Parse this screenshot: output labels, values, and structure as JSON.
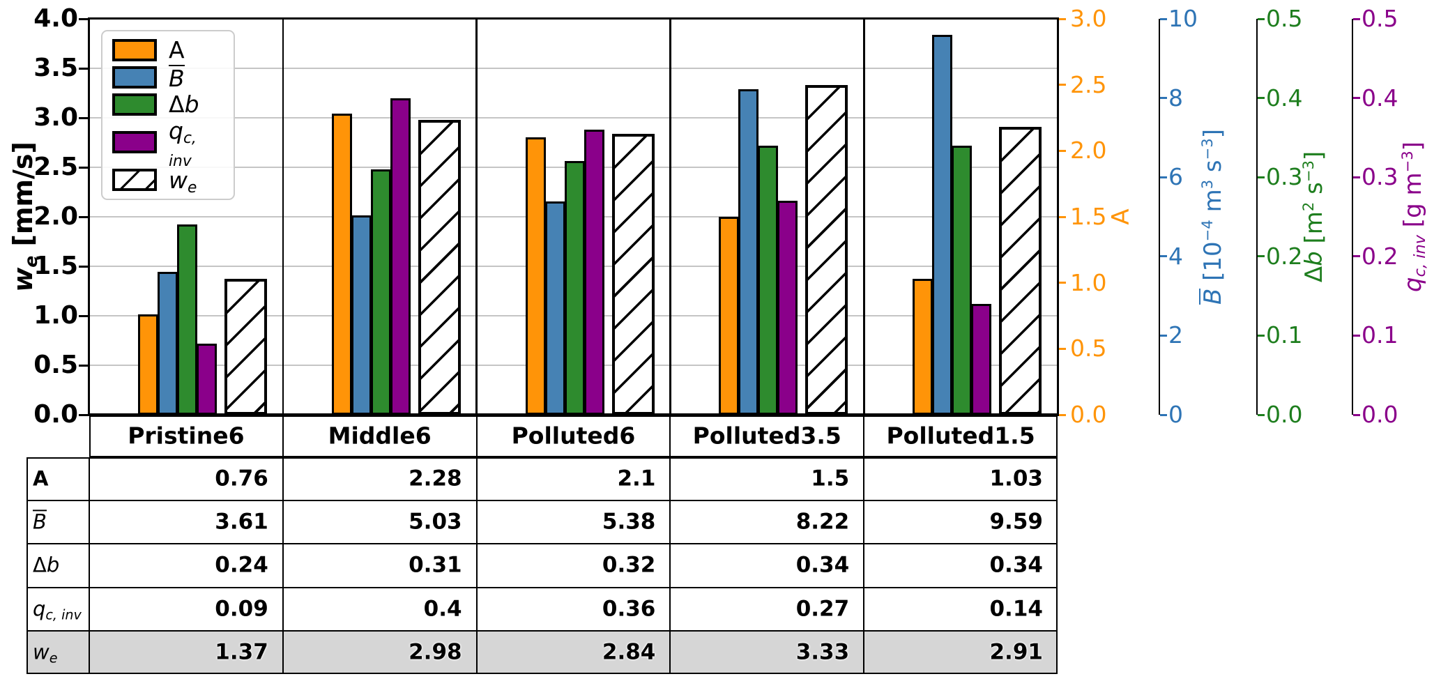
{
  "colors": {
    "orange": "#FF9408",
    "blue_bar": "#4682B4",
    "blue_text": "#2E74B5",
    "green_bar": "#2E8B2E",
    "green_text": "#1E7E1E",
    "purple": "#8A008A",
    "grid": "#C5C5C5",
    "table_shaded_row": "#D6D6D6",
    "legend_border": "#CCCCCC"
  },
  "chart_data": {
    "type": "bar",
    "title": "",
    "categories": [
      "Pristine6",
      "Middle6",
      "Polluted6",
      "Polluted3.5",
      "Polluted1.5"
    ],
    "series": [
      {
        "name": "A",
        "values": [
          0.76,
          2.28,
          2.1,
          1.5,
          1.03
        ],
        "axis_label": "A",
        "axis_range": [
          0,
          3
        ],
        "color": "#FF9408",
        "hatched": false
      },
      {
        "name": "B̄",
        "values": [
          3.61,
          5.03,
          5.38,
          8.22,
          9.59
        ],
        "axis_label": "B̄ [10⁻⁴ m³ s⁻³]",
        "axis_range": [
          0,
          10
        ],
        "color": "#4682B4",
        "hatched": false
      },
      {
        "name": "Δb",
        "values": [
          0.24,
          0.31,
          0.32,
          0.34,
          0.34
        ],
        "axis_label": "Δb [m² s⁻³]",
        "axis_range": [
          0,
          0.5
        ],
        "color": "#2E8B2E",
        "hatched": false
      },
      {
        "name": "q_c,inv",
        "values": [
          0.09,
          0.4,
          0.36,
          0.27,
          0.14
        ],
        "axis_label": "q_c,inv [g m⁻³]",
        "axis_range": [
          0,
          0.5
        ],
        "color": "#8A008A",
        "hatched": false
      },
      {
        "name": "w_e",
        "values": [
          1.37,
          2.98,
          2.84,
          3.33,
          2.91
        ],
        "axis_label": "w_e [mm/s]",
        "axis_range": [
          0,
          4
        ],
        "color": "#FFFFFF",
        "hatched": true
      }
    ],
    "ylabel": "w_e [mm/s]",
    "ylim": [
      0,
      4
    ],
    "grid": true,
    "gridline_values": [
      0.5,
      1.0,
      1.5,
      2.0,
      2.5,
      3.0,
      3.5
    ],
    "legend_position": "upper left"
  },
  "left_axis": {
    "label_tokens": [
      {
        "t": "w",
        "i": true
      },
      {
        "t": "e",
        "sub": true,
        "i": true
      },
      {
        "t": " [mm/s]"
      }
    ],
    "ticks": [
      "0.0",
      "0.5",
      "1.0",
      "1.5",
      "2.0",
      "2.5",
      "3.0",
      "3.5",
      "4.0"
    ],
    "max": 4
  },
  "right_axes": [
    {
      "id": "A",
      "text_color": "#FF9408",
      "max": 3,
      "ticks": [
        "0.0",
        "0.5",
        "1.0",
        "1.5",
        "2.0",
        "2.5",
        "3.0"
      ],
      "label_tokens": [
        {
          "t": "A"
        }
      ]
    },
    {
      "id": "B",
      "text_color": "#2E74B5",
      "max": 10,
      "ticks": [
        "0",
        "2",
        "4",
        "6",
        "8",
        "10"
      ],
      "label_tokens": [
        {
          "t": "B",
          "i": true,
          "ov": true
        },
        {
          "t": " [10"
        },
        {
          "t": "−4",
          "sup": true
        },
        {
          "t": " m"
        },
        {
          "t": "3",
          "sup": true
        },
        {
          "t": " s"
        },
        {
          "t": "−3",
          "sup": true
        },
        {
          "t": "]"
        }
      ]
    },
    {
      "id": "db",
      "text_color": "#1E7E1E",
      "max": 0.5,
      "ticks": [
        "0.0",
        "0.1",
        "0.2",
        "0.3",
        "0.4",
        "0.5"
      ],
      "label_tokens": [
        {
          "t": "Δ"
        },
        {
          "t": "b",
          "i": true
        },
        {
          "t": " [m"
        },
        {
          "t": "2",
          "sup": true
        },
        {
          "t": " s"
        },
        {
          "t": "−3",
          "sup": true
        },
        {
          "t": "]"
        }
      ]
    },
    {
      "id": "q",
      "text_color": "#8A008A",
      "max": 0.5,
      "ticks": [
        "0.0",
        "0.1",
        "0.2",
        "0.3",
        "0.4",
        "0.5"
      ],
      "label_tokens": [
        {
          "t": "q",
          "i": true
        },
        {
          "t": "c, inv",
          "sub": true,
          "i": true
        },
        {
          "t": " [g m"
        },
        {
          "t": "−3",
          "sup": true
        },
        {
          "t": "]"
        }
      ]
    }
  ],
  "legend": {
    "items": [
      {
        "series": "A",
        "swatch": "#FF9408",
        "label_tokens": [
          {
            "t": "A"
          }
        ]
      },
      {
        "series": "B̄",
        "swatch": "#4682B4",
        "label_tokens": [
          {
            "t": "B",
            "i": true,
            "ov": true
          }
        ]
      },
      {
        "series": "Δb",
        "swatch": "#2E8B2E",
        "label_tokens": [
          {
            "t": "Δ"
          },
          {
            "t": "b",
            "i": true
          }
        ]
      },
      {
        "series": "q_c,inv",
        "swatch": "#8A008A",
        "label_tokens": [
          {
            "t": "q",
            "i": true
          },
          {
            "t": "c, inv",
            "sub": true,
            "i": true
          }
        ]
      },
      {
        "series": "w_e",
        "swatch": "hatch",
        "label_tokens": [
          {
            "t": "w",
            "i": true
          },
          {
            "t": "e",
            "sub": true,
            "i": true
          }
        ]
      }
    ]
  },
  "table": {
    "column_headers": [
      "Pristine6",
      "Middle6",
      "Polluted6",
      "Polluted3.5",
      "Polluted1.5"
    ],
    "rows": [
      {
        "id": "A",
        "shaded": false,
        "label_tokens": [
          {
            "t": "A",
            "b": true
          }
        ],
        "cells": [
          "0.76",
          "2.28",
          "2.1",
          "1.5",
          "1.03"
        ]
      },
      {
        "id": "B",
        "shaded": false,
        "label_tokens": [
          {
            "t": "B",
            "i": true,
            "ov": true
          }
        ],
        "cells": [
          "3.61",
          "5.03",
          "5.38",
          "8.22",
          "9.59"
        ]
      },
      {
        "id": "db",
        "shaded": false,
        "label_tokens": [
          {
            "t": "Δ"
          },
          {
            "t": "b",
            "i": true
          }
        ],
        "cells": [
          "0.24",
          "0.31",
          "0.32",
          "0.34",
          "0.34"
        ]
      },
      {
        "id": "q",
        "shaded": false,
        "label_tokens": [
          {
            "t": "q",
            "i": true
          },
          {
            "t": "c, inv",
            "sub": true,
            "i": true
          }
        ],
        "cells": [
          "0.09",
          "0.4",
          "0.36",
          "0.27",
          "0.14"
        ]
      },
      {
        "id": "we",
        "shaded": true,
        "label_tokens": [
          {
            "t": "w",
            "i": true
          },
          {
            "t": "e",
            "sub": true,
            "i": true
          }
        ],
        "cells": [
          "1.37",
          "2.98",
          "2.84",
          "3.33",
          "2.91"
        ]
      }
    ]
  }
}
